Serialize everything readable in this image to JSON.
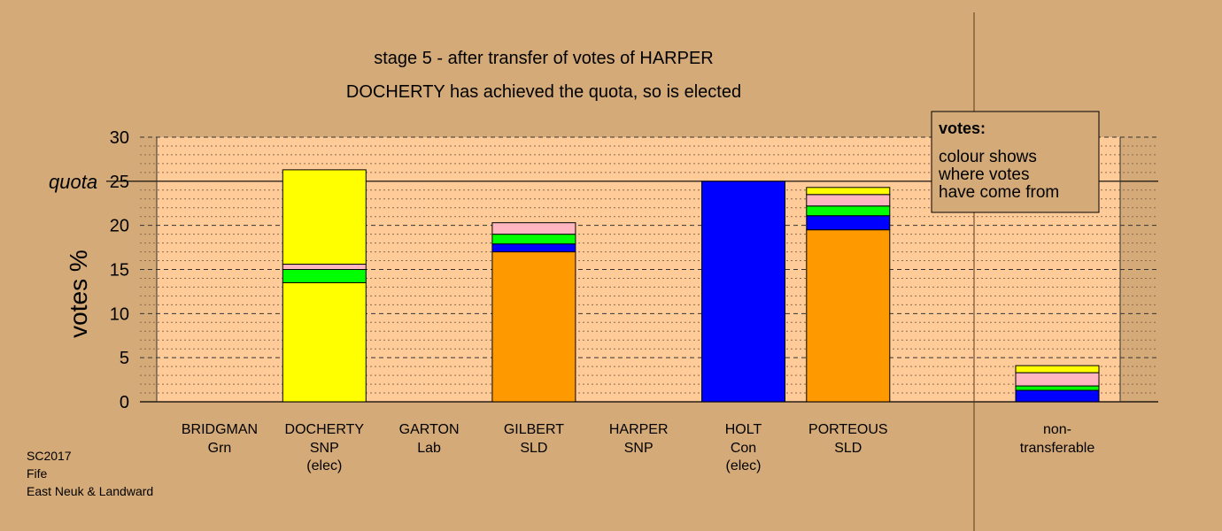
{
  "chart_data": {
    "type": "bar",
    "stacked": true,
    "title": "stage 5 - after transfer of votes of HARPER",
    "subtitle": "DOCHERTY has achieved the quota, so is elected",
    "ylabel": "votes %",
    "xlabel": "",
    "ylim": [
      0,
      30
    ],
    "yticks": [
      0,
      5,
      10,
      15,
      20,
      25,
      30
    ],
    "quota": 25,
    "quota_label": "quota",
    "grid": true,
    "legend": {
      "placement": "top-right",
      "title": "votes:",
      "lines": [
        "colour shows",
        "where votes",
        "have come from"
      ]
    },
    "colors": {
      "background": "#d4aa78",
      "plot_area": "#ffcc99",
      "SNP": "#ffff00",
      "Con": "#0000ff",
      "SLD": "#ff9900",
      "Lab": "#ff0000",
      "Grn": "#00ff00",
      "Other": "#ffb6c1"
    },
    "candidates": [
      {
        "name": "BRIDGMAN",
        "party": "Grn",
        "status": "",
        "segments": []
      },
      {
        "name": "DOCHERTY",
        "party": "SNP",
        "status": "(elec)",
        "segments": [
          {
            "color": "#ffff00",
            "value": 13.5
          },
          {
            "color": "#00ff00",
            "value": 1.5
          },
          {
            "color": "#ffb6c1",
            "value": 0.6
          },
          {
            "color": "#ffff00",
            "value": 10.7
          }
        ]
      },
      {
        "name": "GARTON",
        "party": "Lab",
        "status": "",
        "segments": []
      },
      {
        "name": "GILBERT",
        "party": "SLD",
        "status": "",
        "segments": [
          {
            "color": "#ff9900",
            "value": 17.0
          },
          {
            "color": "#0000ff",
            "value": 0.9
          },
          {
            "color": "#00ff00",
            "value": 1.1
          },
          {
            "color": "#ffb6c1",
            "value": 1.3
          }
        ]
      },
      {
        "name": "HARPER",
        "party": "SNP",
        "status": "",
        "segments": []
      },
      {
        "name": "HOLT",
        "party": "Con",
        "status": "(elec)",
        "segments": [
          {
            "color": "#0000ff",
            "value": 25.0
          }
        ]
      },
      {
        "name": "PORTEOUS",
        "party": "SLD",
        "status": "",
        "segments": [
          {
            "color": "#ff9900",
            "value": 19.5
          },
          {
            "color": "#0000ff",
            "value": 1.6
          },
          {
            "color": "#00ff00",
            "value": 1.1
          },
          {
            "color": "#ffb6c1",
            "value": 1.3
          },
          {
            "color": "#ffff00",
            "value": 0.8
          }
        ]
      }
    ],
    "nontransferable": {
      "label_line1": "non-",
      "label_line2": "transferable",
      "segments": [
        {
          "color": "#0000ff",
          "value": 1.3
        },
        {
          "color": "#00ff00",
          "value": 0.5
        },
        {
          "color": "#ffb6c1",
          "value": 1.5
        },
        {
          "color": "#ffff00",
          "value": 0.8
        }
      ]
    }
  },
  "meta": {
    "line1": "SC2017",
    "line2": "Fife",
    "line3": "East Neuk & Landward"
  }
}
